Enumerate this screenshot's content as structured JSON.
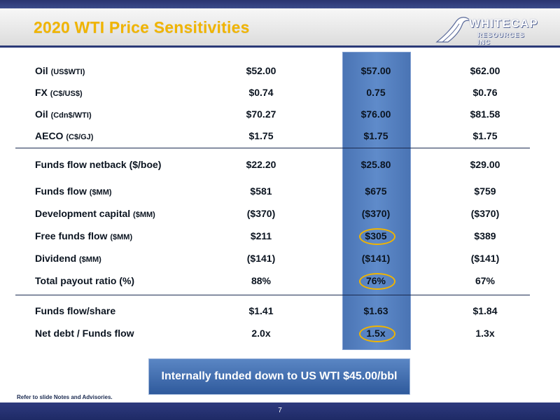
{
  "title": "2020 WTI Price Sensitivities",
  "logo": {
    "name": "WHITECAP",
    "sub": "RESOURCES INC"
  },
  "rows": [
    {
      "label": "Oil",
      "unit": "(US$WTI)",
      "values": [
        "$52.00",
        "$57.00",
        "$62.00"
      ]
    },
    {
      "label": "FX",
      "unit": "(C$/US$)",
      "values": [
        "$0.74",
        "0.75",
        "$0.76"
      ]
    },
    {
      "label": "Oil",
      "unit": "(Cdn$/WTI)",
      "values": [
        "$70.27",
        "$76.00",
        "$81.58"
      ]
    },
    {
      "label": "AECO",
      "unit": "(C$/GJ)",
      "values": [
        "$1.75",
        "$1.75",
        "$1.75"
      ]
    },
    {
      "label": "Funds flow netback ($/boe)",
      "unit": "",
      "values": [
        "$22.20",
        "$25.80",
        "$29.00"
      ]
    },
    {
      "label": "Funds flow",
      "unit": "($MM)",
      "values": [
        "$581",
        "$675",
        "$759"
      ]
    },
    {
      "label": "Development capital",
      "unit": "($MM)",
      "values": [
        "($370)",
        "($370)",
        "($370)"
      ]
    },
    {
      "label": "Free funds flow",
      "unit": "($MM)",
      "values": [
        "$211",
        "$305",
        "$389"
      ]
    },
    {
      "label": "Dividend",
      "unit": "($MM)",
      "values": [
        "($141)",
        "($141)",
        "($141)"
      ]
    },
    {
      "label": "Total payout ratio (%)",
      "unit": "",
      "values": [
        "88%",
        "76%",
        "67%"
      ]
    },
    {
      "label": "Funds flow/share",
      "unit": "",
      "values": [
        "$1.41",
        "$1.63",
        "$1.84"
      ]
    },
    {
      "label": "Net debt / Funds flow",
      "unit": "",
      "values": [
        "2.0x",
        "1.5x",
        "1.3x"
      ]
    }
  ],
  "callout": "Internally funded down to US WTI $45.00/bbl",
  "notes": "Refer to slide Notes and Advisories.",
  "page_number": "7",
  "colors": {
    "title": "#f0b400",
    "navy": "#2b3a78",
    "highlight": "#5f8bca",
    "ring": "#f0b400"
  }
}
